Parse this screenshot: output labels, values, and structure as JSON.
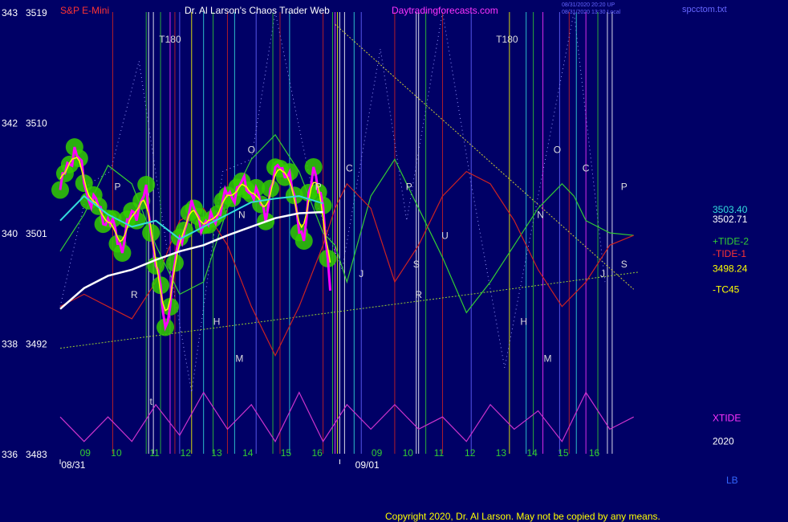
{
  "header": {
    "instrument": "S&P E-Mini",
    "title": "Dr. Al Larson's Chaos Trader Web",
    "site": "Daytradingforecasts.com",
    "timestamps": [
      "08/31/2020 20:20 UP",
      "08/31/2020 13:30 Local"
    ],
    "file": "spcctom.txt"
  },
  "footer": {
    "copyright": "Copyright 2020, Dr. Al Larson. May not be copied by any means.",
    "lb": "LB"
  },
  "colors": {
    "background": "#000066",
    "price_candle": "#ff00ff",
    "price_glow": "#33cc00",
    "fast_ma": "#ffff00",
    "mid_ma": "#33dddd",
    "slow_ma": "#ffffff",
    "tide_plus": "#33cc33",
    "tide_minus": "#cc2222",
    "xtide": "#cc33cc"
  },
  "chart_data": {
    "type": "line",
    "title": "S&P E-Mini",
    "ylim": [
      3483,
      3519
    ],
    "y_ticks": [
      {
        "left": "343",
        "right": "3519",
        "value": 3519
      },
      {
        "left": "342",
        "right": "3510",
        "value": 3510
      },
      {
        "left": "340",
        "right": "3501",
        "value": 3501
      },
      {
        "left": "338",
        "right": "3492",
        "value": 3492
      },
      {
        "left": "336",
        "right": "3483",
        "value": 3483
      }
    ],
    "x_range": [
      0,
      27.2
    ],
    "date_labels": [
      {
        "label": "08/31",
        "x": 0.55
      },
      {
        "label": "09/01",
        "x": 12.85
      }
    ],
    "hour_labels": [
      {
        "label": "09",
        "x": 1.05
      },
      {
        "label": "10",
        "x": 2.35
      },
      {
        "label": "11",
        "x": 3.95
      },
      {
        "label": "12",
        "x": 5.25
      },
      {
        "label": "13",
        "x": 6.55
      },
      {
        "label": "14",
        "x": 7.85
      },
      {
        "label": "15",
        "x": 9.45
      },
      {
        "label": "16",
        "x": 10.75
      },
      {
        "label": "09",
        "x": 13.25
      },
      {
        "label": "10",
        "x": 14.55
      },
      {
        "label": "11",
        "x": 15.85
      },
      {
        "label": "12",
        "x": 17.15
      },
      {
        "label": "13",
        "x": 18.45
      },
      {
        "label": "14",
        "x": 19.75
      },
      {
        "label": "15",
        "x": 21.05
      },
      {
        "label": "16",
        "x": 22.35
      }
    ],
    "series": [
      {
        "name": "+TIDE-2",
        "values": [
          [
            0,
            3499.5
          ],
          [
            1,
            3502.5
          ],
          [
            2,
            3506.5
          ],
          [
            3,
            3505
          ],
          [
            4,
            3500
          ],
          [
            5,
            3496
          ],
          [
            6,
            3497
          ],
          [
            7,
            3503
          ],
          [
            8,
            3507
          ],
          [
            9,
            3509
          ],
          [
            10,
            3506
          ],
          [
            11,
            3501
          ],
          [
            11.5,
            3500
          ],
          [
            12,
            3497
          ],
          [
            13,
            3504
          ],
          [
            14,
            3507
          ],
          [
            15,
            3503
          ],
          [
            16,
            3499
          ],
          [
            17,
            3494.5
          ],
          [
            18,
            3497
          ],
          [
            19,
            3500
          ],
          [
            20,
            3503
          ],
          [
            21,
            3505
          ],
          [
            21.5,
            3504
          ],
          [
            22,
            3502
          ],
          [
            23,
            3501
          ],
          [
            24,
            3500.8
          ]
        ]
      },
      {
        "name": "-TIDE-1",
        "values": [
          [
            0,
            3495
          ],
          [
            1,
            3496
          ],
          [
            2,
            3495
          ],
          [
            3,
            3494
          ],
          [
            4,
            3497
          ],
          [
            5,
            3502
          ],
          [
            6,
            3503
          ],
          [
            7,
            3500
          ],
          [
            8,
            3495
          ],
          [
            9,
            3491
          ],
          [
            10,
            3495
          ],
          [
            11,
            3500
          ],
          [
            11.5,
            3503
          ],
          [
            12,
            3505
          ],
          [
            13,
            3503
          ],
          [
            14,
            3497
          ],
          [
            15,
            3500
          ],
          [
            16,
            3504
          ],
          [
            17,
            3506
          ],
          [
            18,
            3505
          ],
          [
            19,
            3502
          ],
          [
            20,
            3498
          ],
          [
            21,
            3495
          ],
          [
            22,
            3497
          ],
          [
            23,
            3500
          ],
          [
            24,
            3500.8
          ]
        ]
      },
      {
        "name": "XTIDE",
        "values": [
          [
            0,
            3486
          ],
          [
            1,
            3484
          ],
          [
            2,
            3486
          ],
          [
            3,
            3484
          ],
          [
            4,
            3487
          ],
          [
            5,
            3484.5
          ],
          [
            6,
            3488
          ],
          [
            7,
            3485
          ],
          [
            8,
            3487
          ],
          [
            9,
            3484
          ],
          [
            10,
            3488
          ],
          [
            11,
            3484
          ],
          [
            12,
            3487
          ],
          [
            13,
            3485
          ],
          [
            14,
            3487
          ],
          [
            15,
            3485
          ],
          [
            16,
            3486
          ],
          [
            17,
            3484
          ],
          [
            18,
            3487
          ],
          [
            19,
            3485
          ],
          [
            20,
            3486.5
          ],
          [
            21,
            3484
          ],
          [
            22,
            3488
          ],
          [
            23,
            3485
          ],
          [
            24,
            3486
          ]
        ]
      }
    ],
    "markers": [
      {
        "text": "T180",
        "x": 4.6,
        "y": 3516.5
      },
      {
        "text": "T180",
        "x": 18.7,
        "y": 3516.5
      },
      {
        "text": "P",
        "x": 2.4,
        "y": 3504.5
      },
      {
        "text": "P",
        "x": 10.8,
        "y": 3504.5
      },
      {
        "text": "P",
        "x": 14.6,
        "y": 3504.5
      },
      {
        "text": "P",
        "x": 23.6,
        "y": 3504.5
      },
      {
        "text": "O",
        "x": 8.0,
        "y": 3507.5
      },
      {
        "text": "O",
        "x": 20.8,
        "y": 3507.5
      },
      {
        "text": "N",
        "x": 7.6,
        "y": 3502.2
      },
      {
        "text": "N",
        "x": 20.1,
        "y": 3502.2
      },
      {
        "text": "C",
        "x": 12.1,
        "y": 3506
      },
      {
        "text": "C",
        "x": 22.0,
        "y": 3506
      },
      {
        "text": "U",
        "x": 16.1,
        "y": 3500.5
      },
      {
        "text": "S",
        "x": 14.9,
        "y": 3498.2
      },
      {
        "text": "S",
        "x": 23.6,
        "y": 3498.2
      },
      {
        "text": "R",
        "x": 3.1,
        "y": 3495.7
      },
      {
        "text": "R",
        "x": 15.0,
        "y": 3495.7
      },
      {
        "text": "J",
        "x": 12.6,
        "y": 3497.4
      },
      {
        "text": "J",
        "x": 22.7,
        "y": 3497.4
      },
      {
        "text": "H",
        "x": 6.55,
        "y": 3493.5
      },
      {
        "text": "H",
        "x": 19.4,
        "y": 3493.5
      },
      {
        "text": "M",
        "x": 7.5,
        "y": 3490.5
      },
      {
        "text": "M",
        "x": 20.4,
        "y": 3490.5
      },
      {
        "text": "t",
        "x": 3.8,
        "y": 3487
      }
    ],
    "right_labels": [
      {
        "text": "3503.40",
        "y": 3502.9,
        "color": "#33dddd"
      },
      {
        "text": "3502.71",
        "y": 3502.1,
        "color": "#ffffff"
      },
      {
        "text": "+TIDE-2",
        "y": 3500.3,
        "color": "#33cc33"
      },
      {
        "text": "-TIDE-1",
        "y": 3499.3,
        "color": "#ff3333"
      },
      {
        "text": "3498.24",
        "y": 3498.1,
        "color": "#ffff00"
      },
      {
        "text": "-TC45",
        "y": 3496.4,
        "color": "#ffff00"
      },
      {
        "text": "XTIDE",
        "y": 3485.9,
        "color": "#ff33ff"
      },
      {
        "text": "2020",
        "y": 3484.0,
        "color": "#ffffff"
      }
    ]
  }
}
